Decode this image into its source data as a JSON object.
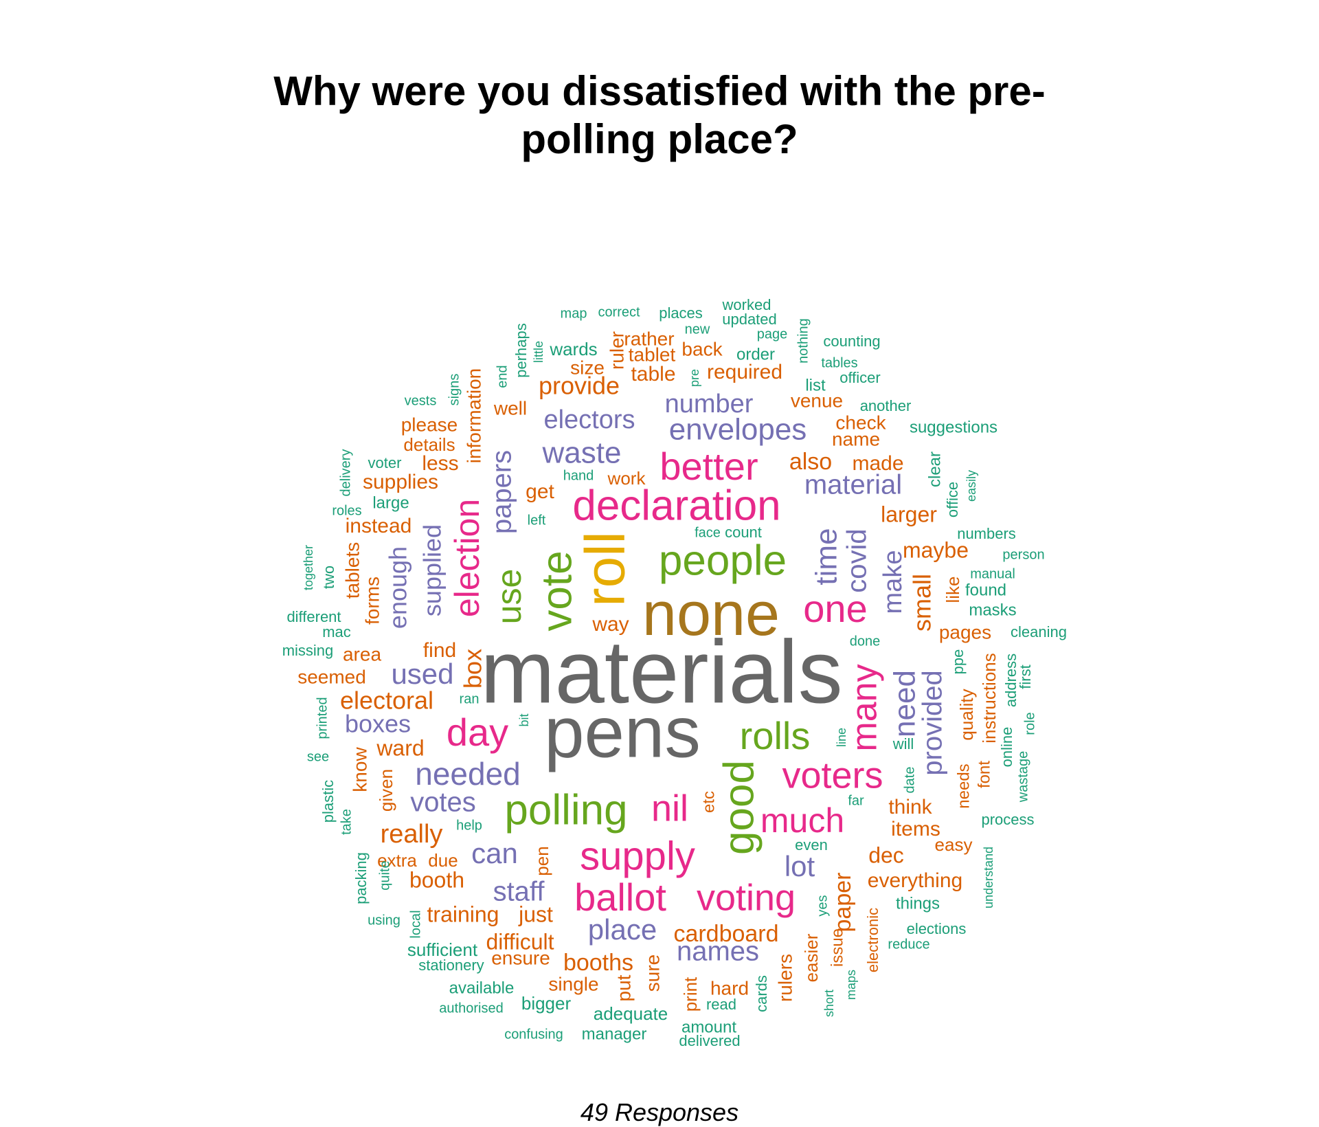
{
  "title_lines": [
    "Why were you dissatisfied with the pre-",
    "polling place?"
  ],
  "footer": "49 Responses",
  "colors": {
    "grey": "#666666",
    "brown": "#a6761d",
    "orange": "#d95f02",
    "purple": "#7570b3",
    "pink": "#e7298a",
    "green": "#66a61e",
    "gold": "#e6ab02",
    "teal": "#1b9e77"
  },
  "chart_data": {
    "type": "wordcloud",
    "words": [
      {
        "text": "materials",
        "color": "grey"
      },
      {
        "text": "pens",
        "color": "grey"
      },
      {
        "text": "none",
        "color": "brown"
      },
      {
        "text": "roll",
        "color": "gold"
      },
      {
        "text": "declaration",
        "color": "pink"
      },
      {
        "text": "people",
        "color": "green"
      },
      {
        "text": "vote",
        "color": "green"
      },
      {
        "text": "polling",
        "color": "green"
      },
      {
        "text": "good",
        "color": "green"
      },
      {
        "text": "rolls",
        "color": "green"
      },
      {
        "text": "better",
        "color": "pink"
      },
      {
        "text": "one",
        "color": "pink"
      },
      {
        "text": "day",
        "color": "pink"
      },
      {
        "text": "supply",
        "color": "pink"
      },
      {
        "text": "voters",
        "color": "pink"
      },
      {
        "text": "ballot",
        "color": "pink"
      },
      {
        "text": "voting",
        "color": "pink"
      },
      {
        "text": "much",
        "color": "pink"
      },
      {
        "text": "nil",
        "color": "pink"
      },
      {
        "text": "many",
        "color": "pink"
      },
      {
        "text": "election",
        "color": "pink"
      },
      {
        "text": "use",
        "color": "green"
      },
      {
        "text": "papers",
        "color": "purple"
      },
      {
        "text": "envelopes",
        "color": "purple"
      },
      {
        "text": "waste",
        "color": "purple"
      },
      {
        "text": "electors",
        "color": "purple"
      },
      {
        "text": "number",
        "color": "purple"
      },
      {
        "text": "material",
        "color": "purple"
      },
      {
        "text": "time",
        "color": "purple"
      },
      {
        "text": "covid",
        "color": "purple"
      },
      {
        "text": "make",
        "color": "purple"
      },
      {
        "text": "need",
        "color": "purple"
      },
      {
        "text": "provided",
        "color": "purple"
      },
      {
        "text": "needed",
        "color": "purple"
      },
      {
        "text": "votes",
        "color": "purple"
      },
      {
        "text": "used",
        "color": "purple"
      },
      {
        "text": "boxes",
        "color": "purple"
      },
      {
        "text": "can",
        "color": "purple"
      },
      {
        "text": "staff",
        "color": "purple"
      },
      {
        "text": "place",
        "color": "purple"
      },
      {
        "text": "names",
        "color": "purple"
      },
      {
        "text": "lot",
        "color": "purple"
      },
      {
        "text": "supplied",
        "color": "purple"
      },
      {
        "text": "enough",
        "color": "purple"
      },
      {
        "text": "box",
        "color": "orange"
      },
      {
        "text": "electoral",
        "color": "orange"
      },
      {
        "text": "ward",
        "color": "orange"
      },
      {
        "text": "really",
        "color": "orange"
      },
      {
        "text": "booth",
        "color": "orange"
      },
      {
        "text": "training",
        "color": "orange"
      },
      {
        "text": "just",
        "color": "orange"
      },
      {
        "text": "difficult",
        "color": "orange"
      },
      {
        "text": "booths",
        "color": "orange"
      },
      {
        "text": "cardboard",
        "color": "orange"
      },
      {
        "text": "paper",
        "color": "orange"
      },
      {
        "text": "everything",
        "color": "orange"
      },
      {
        "text": "dec",
        "color": "orange"
      },
      {
        "text": "items",
        "color": "orange"
      },
      {
        "text": "think",
        "color": "orange"
      },
      {
        "text": "small",
        "color": "orange"
      },
      {
        "text": "maybe",
        "color": "orange"
      },
      {
        "text": "larger",
        "color": "orange"
      },
      {
        "text": "also",
        "color": "orange"
      },
      {
        "text": "made",
        "color": "orange"
      },
      {
        "text": "name",
        "color": "orange"
      },
      {
        "text": "check",
        "color": "orange"
      },
      {
        "text": "venue",
        "color": "orange"
      },
      {
        "text": "required",
        "color": "orange"
      },
      {
        "text": "provide",
        "color": "orange"
      },
      {
        "text": "size",
        "color": "orange"
      },
      {
        "text": "table",
        "color": "orange"
      },
      {
        "text": "tablet",
        "color": "orange"
      },
      {
        "text": "back",
        "color": "orange"
      },
      {
        "text": "rather",
        "color": "orange"
      },
      {
        "text": "ruler",
        "color": "orange"
      },
      {
        "text": "well",
        "color": "orange"
      },
      {
        "text": "please",
        "color": "orange"
      },
      {
        "text": "details",
        "color": "orange"
      },
      {
        "text": "less",
        "color": "orange"
      },
      {
        "text": "supplies",
        "color": "orange"
      },
      {
        "text": "instead",
        "color": "orange"
      },
      {
        "text": "get",
        "color": "orange"
      },
      {
        "text": "work",
        "color": "orange"
      },
      {
        "text": "way",
        "color": "orange"
      },
      {
        "text": "find",
        "color": "orange"
      },
      {
        "text": "area",
        "color": "orange"
      },
      {
        "text": "seemed",
        "color": "orange"
      },
      {
        "text": "forms",
        "color": "orange"
      },
      {
        "text": "tablets",
        "color": "orange"
      },
      {
        "text": "information",
        "color": "orange"
      },
      {
        "text": "know",
        "color": "orange"
      },
      {
        "text": "given",
        "color": "orange"
      },
      {
        "text": "extra",
        "color": "orange"
      },
      {
        "text": "due",
        "color": "orange"
      },
      {
        "text": "pen",
        "color": "orange"
      },
      {
        "text": "ensure",
        "color": "orange"
      },
      {
        "text": "single",
        "color": "orange"
      },
      {
        "text": "put",
        "color": "orange"
      },
      {
        "text": "sure",
        "color": "orange"
      },
      {
        "text": "print",
        "color": "orange"
      },
      {
        "text": "hard",
        "color": "orange"
      },
      {
        "text": "rulers",
        "color": "orange"
      },
      {
        "text": "easier",
        "color": "orange"
      },
      {
        "text": "issue",
        "color": "orange"
      },
      {
        "text": "electronic",
        "color": "orange"
      },
      {
        "text": "easy",
        "color": "orange"
      },
      {
        "text": "needs",
        "color": "orange"
      },
      {
        "text": "quality",
        "color": "orange"
      },
      {
        "text": "instructions",
        "color": "orange"
      },
      {
        "text": "font",
        "color": "orange"
      },
      {
        "text": "pages",
        "color": "orange"
      },
      {
        "text": "like",
        "color": "orange"
      },
      {
        "text": "etc",
        "color": "orange"
      },
      {
        "text": "map",
        "color": "teal"
      },
      {
        "text": "correct",
        "color": "teal"
      },
      {
        "text": "places",
        "color": "teal"
      },
      {
        "text": "worked",
        "color": "teal"
      },
      {
        "text": "updated",
        "color": "teal"
      },
      {
        "text": "new",
        "color": "teal"
      },
      {
        "text": "page",
        "color": "teal"
      },
      {
        "text": "nothing",
        "color": "teal"
      },
      {
        "text": "counting",
        "color": "teal"
      },
      {
        "text": "tables",
        "color": "teal"
      },
      {
        "text": "officer",
        "color": "teal"
      },
      {
        "text": "order",
        "color": "teal"
      },
      {
        "text": "list",
        "color": "teal"
      },
      {
        "text": "pre",
        "color": "teal"
      },
      {
        "text": "wards",
        "color": "teal"
      },
      {
        "text": "perhaps",
        "color": "teal"
      },
      {
        "text": "little",
        "color": "teal"
      },
      {
        "text": "end",
        "color": "teal"
      },
      {
        "text": "signs",
        "color": "teal"
      },
      {
        "text": "vests",
        "color": "teal"
      },
      {
        "text": "another",
        "color": "teal"
      },
      {
        "text": "suggestions",
        "color": "teal"
      },
      {
        "text": "clear",
        "color": "teal"
      },
      {
        "text": "office",
        "color": "teal"
      },
      {
        "text": "easily",
        "color": "teal"
      },
      {
        "text": "numbers",
        "color": "teal"
      },
      {
        "text": "person",
        "color": "teal"
      },
      {
        "text": "manual",
        "color": "teal"
      },
      {
        "text": "found",
        "color": "teal"
      },
      {
        "text": "masks",
        "color": "teal"
      },
      {
        "text": "cleaning",
        "color": "teal"
      },
      {
        "text": "hand",
        "color": "teal"
      },
      {
        "text": "left",
        "color": "teal"
      },
      {
        "text": "face",
        "color": "teal"
      },
      {
        "text": "count",
        "color": "teal"
      },
      {
        "text": "voter",
        "color": "teal"
      },
      {
        "text": "large",
        "color": "teal"
      },
      {
        "text": "delivery",
        "color": "teal"
      },
      {
        "text": "roles",
        "color": "teal"
      },
      {
        "text": "together",
        "color": "teal"
      },
      {
        "text": "two",
        "color": "teal"
      },
      {
        "text": "different",
        "color": "teal"
      },
      {
        "text": "mac",
        "color": "teal"
      },
      {
        "text": "missing",
        "color": "teal"
      },
      {
        "text": "ran",
        "color": "teal"
      },
      {
        "text": "printed",
        "color": "teal"
      },
      {
        "text": "see",
        "color": "teal"
      },
      {
        "text": "bit",
        "color": "teal"
      },
      {
        "text": "done",
        "color": "teal"
      },
      {
        "text": "line",
        "color": "teal"
      },
      {
        "text": "will",
        "color": "teal"
      },
      {
        "text": "date",
        "color": "teal"
      },
      {
        "text": "far",
        "color": "teal"
      },
      {
        "text": "even",
        "color": "teal"
      },
      {
        "text": "process",
        "color": "teal"
      },
      {
        "text": "ppe",
        "color": "teal"
      },
      {
        "text": "address",
        "color": "teal"
      },
      {
        "text": "first",
        "color": "teal"
      },
      {
        "text": "online",
        "color": "teal"
      },
      {
        "text": "role",
        "color": "teal"
      },
      {
        "text": "wastage",
        "color": "teal"
      },
      {
        "text": "plastic",
        "color": "teal"
      },
      {
        "text": "take",
        "color": "teal"
      },
      {
        "text": "help",
        "color": "teal"
      },
      {
        "text": "packing",
        "color": "teal"
      },
      {
        "text": "quite",
        "color": "teal"
      },
      {
        "text": "using",
        "color": "teal"
      },
      {
        "text": "local",
        "color": "teal"
      },
      {
        "text": "sufficient",
        "color": "teal"
      },
      {
        "text": "stationery",
        "color": "teal"
      },
      {
        "text": "available",
        "color": "teal"
      },
      {
        "text": "authorised",
        "color": "teal"
      },
      {
        "text": "bigger",
        "color": "teal"
      },
      {
        "text": "adequate",
        "color": "teal"
      },
      {
        "text": "confusing",
        "color": "teal"
      },
      {
        "text": "manager",
        "color": "teal"
      },
      {
        "text": "amount",
        "color": "teal"
      },
      {
        "text": "delivered",
        "color": "teal"
      },
      {
        "text": "read",
        "color": "teal"
      },
      {
        "text": "cards",
        "color": "teal"
      },
      {
        "text": "short",
        "color": "teal"
      },
      {
        "text": "maps",
        "color": "teal"
      },
      {
        "text": "yes",
        "color": "teal"
      },
      {
        "text": "things",
        "color": "teal"
      },
      {
        "text": "elections",
        "color": "teal"
      },
      {
        "text": "reduce",
        "color": "teal"
      },
      {
        "text": "understand",
        "color": "teal"
      }
    ]
  }
}
